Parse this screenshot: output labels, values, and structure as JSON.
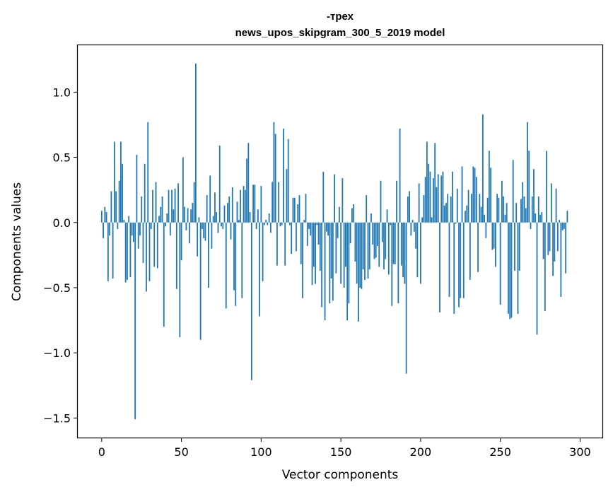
{
  "chart_data": {
    "type": "bar",
    "title": [
      "-трех",
      "news_upos_skipgram_300_5_2019 model"
    ],
    "xlabel": "Vector components",
    "ylabel": "Components values",
    "xlim": [
      -15,
      314
    ],
    "ylim": [
      -1.65,
      1.36
    ],
    "xticks": [
      0,
      50,
      100,
      150,
      200,
      250,
      300
    ],
    "yticks": [
      -1.5,
      -1.0,
      -0.5,
      0.0,
      0.5,
      1.0
    ],
    "ytick_labels": [
      "−1.5",
      "−1.0",
      "−0.5",
      "0.0",
      "0.5",
      "1.0"
    ],
    "bar_color": "#1f77b4",
    "values": [
      0.09,
      -0.12,
      0.12,
      0.08,
      -0.45,
      -0.1,
      0.24,
      -0.43,
      0.62,
      0.24,
      -0.05,
      0.32,
      0.62,
      0.45,
      0.02,
      -0.46,
      -0.44,
      0.05,
      -0.42,
      -0.1,
      -0.15,
      -1.51,
      0.52,
      -0.2,
      -0.1,
      0.2,
      -0.31,
      0.45,
      -0.53,
      0.77,
      -0.45,
      -0.05,
      0.25,
      -0.34,
      0.31,
      -0.35,
      0.05,
      0.12,
      0.2,
      -0.8,
      -0.03,
      0.07,
      0.25,
      -0.1,
      0.25,
      0.1,
      0.26,
      -0.51,
      0.3,
      -0.88,
      -0.29,
      0.5,
      0.12,
      -0.06,
      0.11,
      -0.16,
      0.1,
      0.15,
      0.31,
      1.22,
      -0.26,
      0.04,
      -0.9,
      -0.05,
      -0.12,
      -0.14,
      0.21,
      -0.5,
      0.36,
      -0.2,
      0.05,
      0.23,
      0.08,
      -0.08,
      0.59,
      -0.03,
      -0.05,
      0.13,
      -0.66,
      0.15,
      0.2,
      -0.13,
      0.27,
      -0.52,
      -0.64,
      0.16,
      0.02,
      0.25,
      -0.58,
      0.28,
      0.25,
      0.49,
      0.61,
      0.08,
      -1.21,
      0.29,
      0.29,
      -0.05,
      0.1,
      -0.72,
      0.28,
      -0.45,
      -0.02,
      0.02,
      -0.02,
      0.07,
      -0.08,
      0.31,
      0.77,
      0.68,
      -0.33,
      0.31,
      -0.03,
      -0.02,
      0.72,
      -0.33,
      0.41,
      0.64,
      -0.02,
      -0.24,
      0.19,
      0.19,
      -0.22,
      0.14,
      0.21,
      -0.32,
      -0.58,
      0.02,
      0.22,
      -0.18,
      -0.05,
      -0.1,
      -0.48,
      -0.34,
      -0.47,
      -0.02,
      -0.17,
      -0.37,
      -0.65,
      0.39,
      -0.75,
      -0.07,
      -0.1,
      -0.62,
      -0.43,
      -0.6,
      0.37,
      -0.39,
      -0.12,
      0.12,
      -0.47,
      0.34,
      -0.5,
      -0.34,
      -0.75,
      -0.62,
      -0.16,
      0.11,
      0.14,
      -0.3,
      -0.47,
      -0.76,
      -0.5,
      -0.51,
      -0.36,
      -0.44,
      0.21,
      -0.43,
      -0.36,
      0.07,
      -0.17,
      -0.28,
      -0.27,
      -0.18,
      -0.34,
      0.32,
      -0.15,
      -0.36,
      -0.28,
      0.1,
      -0.4,
      -0.02,
      -0.64,
      -0.32,
      -0.32,
      0.32,
      -0.62,
      0.72,
      -0.33,
      -0.42,
      -0.47,
      -1.16,
      0.2,
      0.24,
      -0.1,
      0.02,
      -0.07,
      -0.2,
      -0.42,
      0.3,
      -0.47,
      0.04,
      0.21,
      0.35,
      0.62,
      0.45,
      0.39,
      0.04,
      0.34,
      0.61,
      0.27,
      0.37,
      -0.69,
      0.36,
      0.39,
      0.13,
      0.15,
      0.22,
      -0.57,
      0.2,
      0.39,
      -0.7,
      -0.01,
      0.26,
      -0.65,
      -0.58,
      0.43,
      -0.58,
      0.09,
      0.13,
      0.25,
      -0.44,
      0.22,
      0.43,
      0.42,
      0.35,
      -0.38,
      0.22,
      0.12,
      0.83,
      0.06,
      -0.12,
      0.19,
      0.55,
      0.42,
      -0.21,
      -0.2,
      -0.34,
      0.22,
      0.19,
      -0.63,
      0.32,
      0.2,
      0.06,
      0.15,
      -0.7,
      -0.74,
      -0.73,
      0.48,
      -0.37,
      0.15,
      -0.7,
      -0.37,
      0.18,
      0.31,
      0.2,
      0.11,
      0.77,
      0.55,
      -0.05,
      0.2,
      0.41,
      0.07,
      -0.86,
      0.2,
      0.06,
      0.08,
      -0.28,
      -0.68,
      0.55,
      -0.25,
      -0.22,
      0.3,
      -0.41,
      -0.3,
      0.26,
      -0.22,
      0.02,
      -0.57,
      -0.06,
      -0.05,
      -0.39,
      0.09
    ]
  }
}
